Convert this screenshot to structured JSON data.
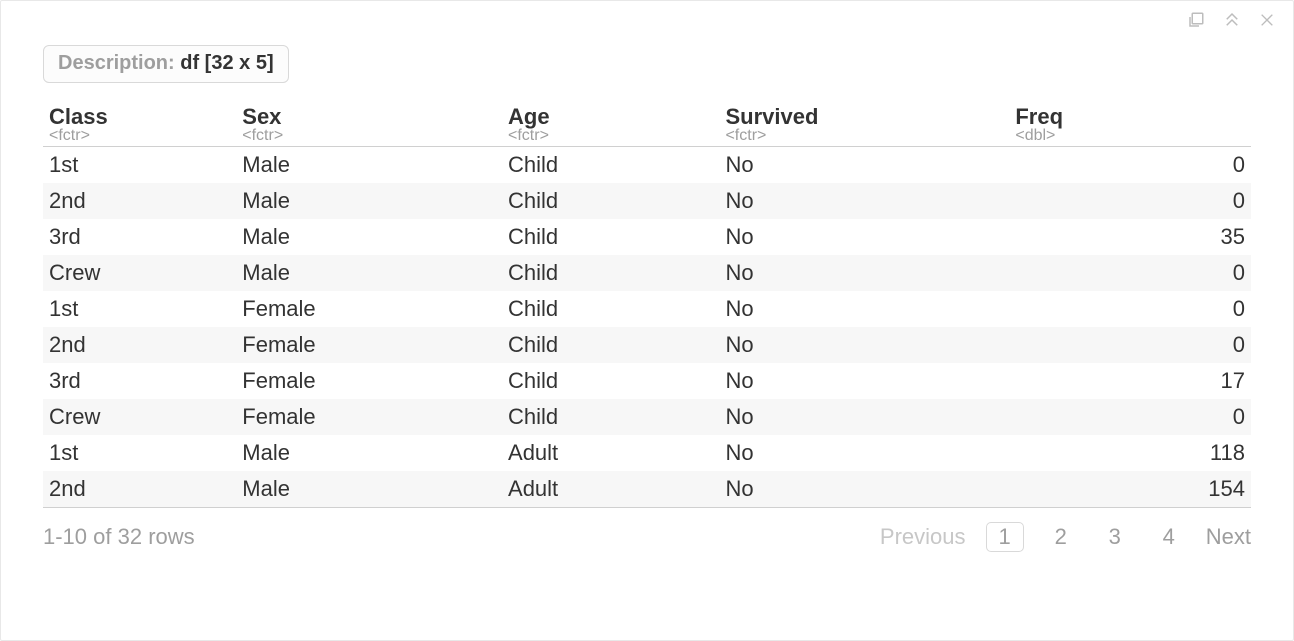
{
  "toolbar": {
    "popout_title": "Show in new window",
    "collapse_title": "Collapse",
    "close_title": "Close"
  },
  "description": {
    "label": "Description:",
    "value": "df [32 x 5]"
  },
  "table": {
    "columns": [
      {
        "name": "Class",
        "type": "<fctr>",
        "align": "left"
      },
      {
        "name": "Sex",
        "type": "<fctr>",
        "align": "left"
      },
      {
        "name": "Age",
        "type": "<fctr>",
        "align": "left"
      },
      {
        "name": "Survived",
        "type": "<fctr>",
        "align": "left"
      },
      {
        "name": "Freq",
        "type": "<dbl>",
        "align": "right"
      }
    ],
    "rows": [
      [
        "1st",
        "Male",
        "Child",
        "No",
        "0"
      ],
      [
        "2nd",
        "Male",
        "Child",
        "No",
        "0"
      ],
      [
        "3rd",
        "Male",
        "Child",
        "No",
        "35"
      ],
      [
        "Crew",
        "Male",
        "Child",
        "No",
        "0"
      ],
      [
        "1st",
        "Female",
        "Child",
        "No",
        "0"
      ],
      [
        "2nd",
        "Female",
        "Child",
        "No",
        "0"
      ],
      [
        "3rd",
        "Female",
        "Child",
        "No",
        "17"
      ],
      [
        "Crew",
        "Female",
        "Child",
        "No",
        "0"
      ],
      [
        "1st",
        "Male",
        "Adult",
        "No",
        "118"
      ],
      [
        "2nd",
        "Male",
        "Adult",
        "No",
        "154"
      ]
    ],
    "col_widths_pct": [
      16,
      22,
      18,
      24,
      20
    ],
    "stripe_odd_bg": "#f7f7f7",
    "border_color": "#d0d0d0"
  },
  "footer": {
    "status": "1-10 of 32 rows",
    "prev_label": "Previous",
    "pages": [
      "1",
      "2",
      "3",
      "4"
    ],
    "current_page_index": 0,
    "next_label": "Next"
  },
  "colors": {
    "text": "#333333",
    "muted": "#9e9e9e",
    "disabled": "#c7c7c7",
    "panel_border": "#e8e8e8",
    "box_border": "#d9d9d9"
  }
}
